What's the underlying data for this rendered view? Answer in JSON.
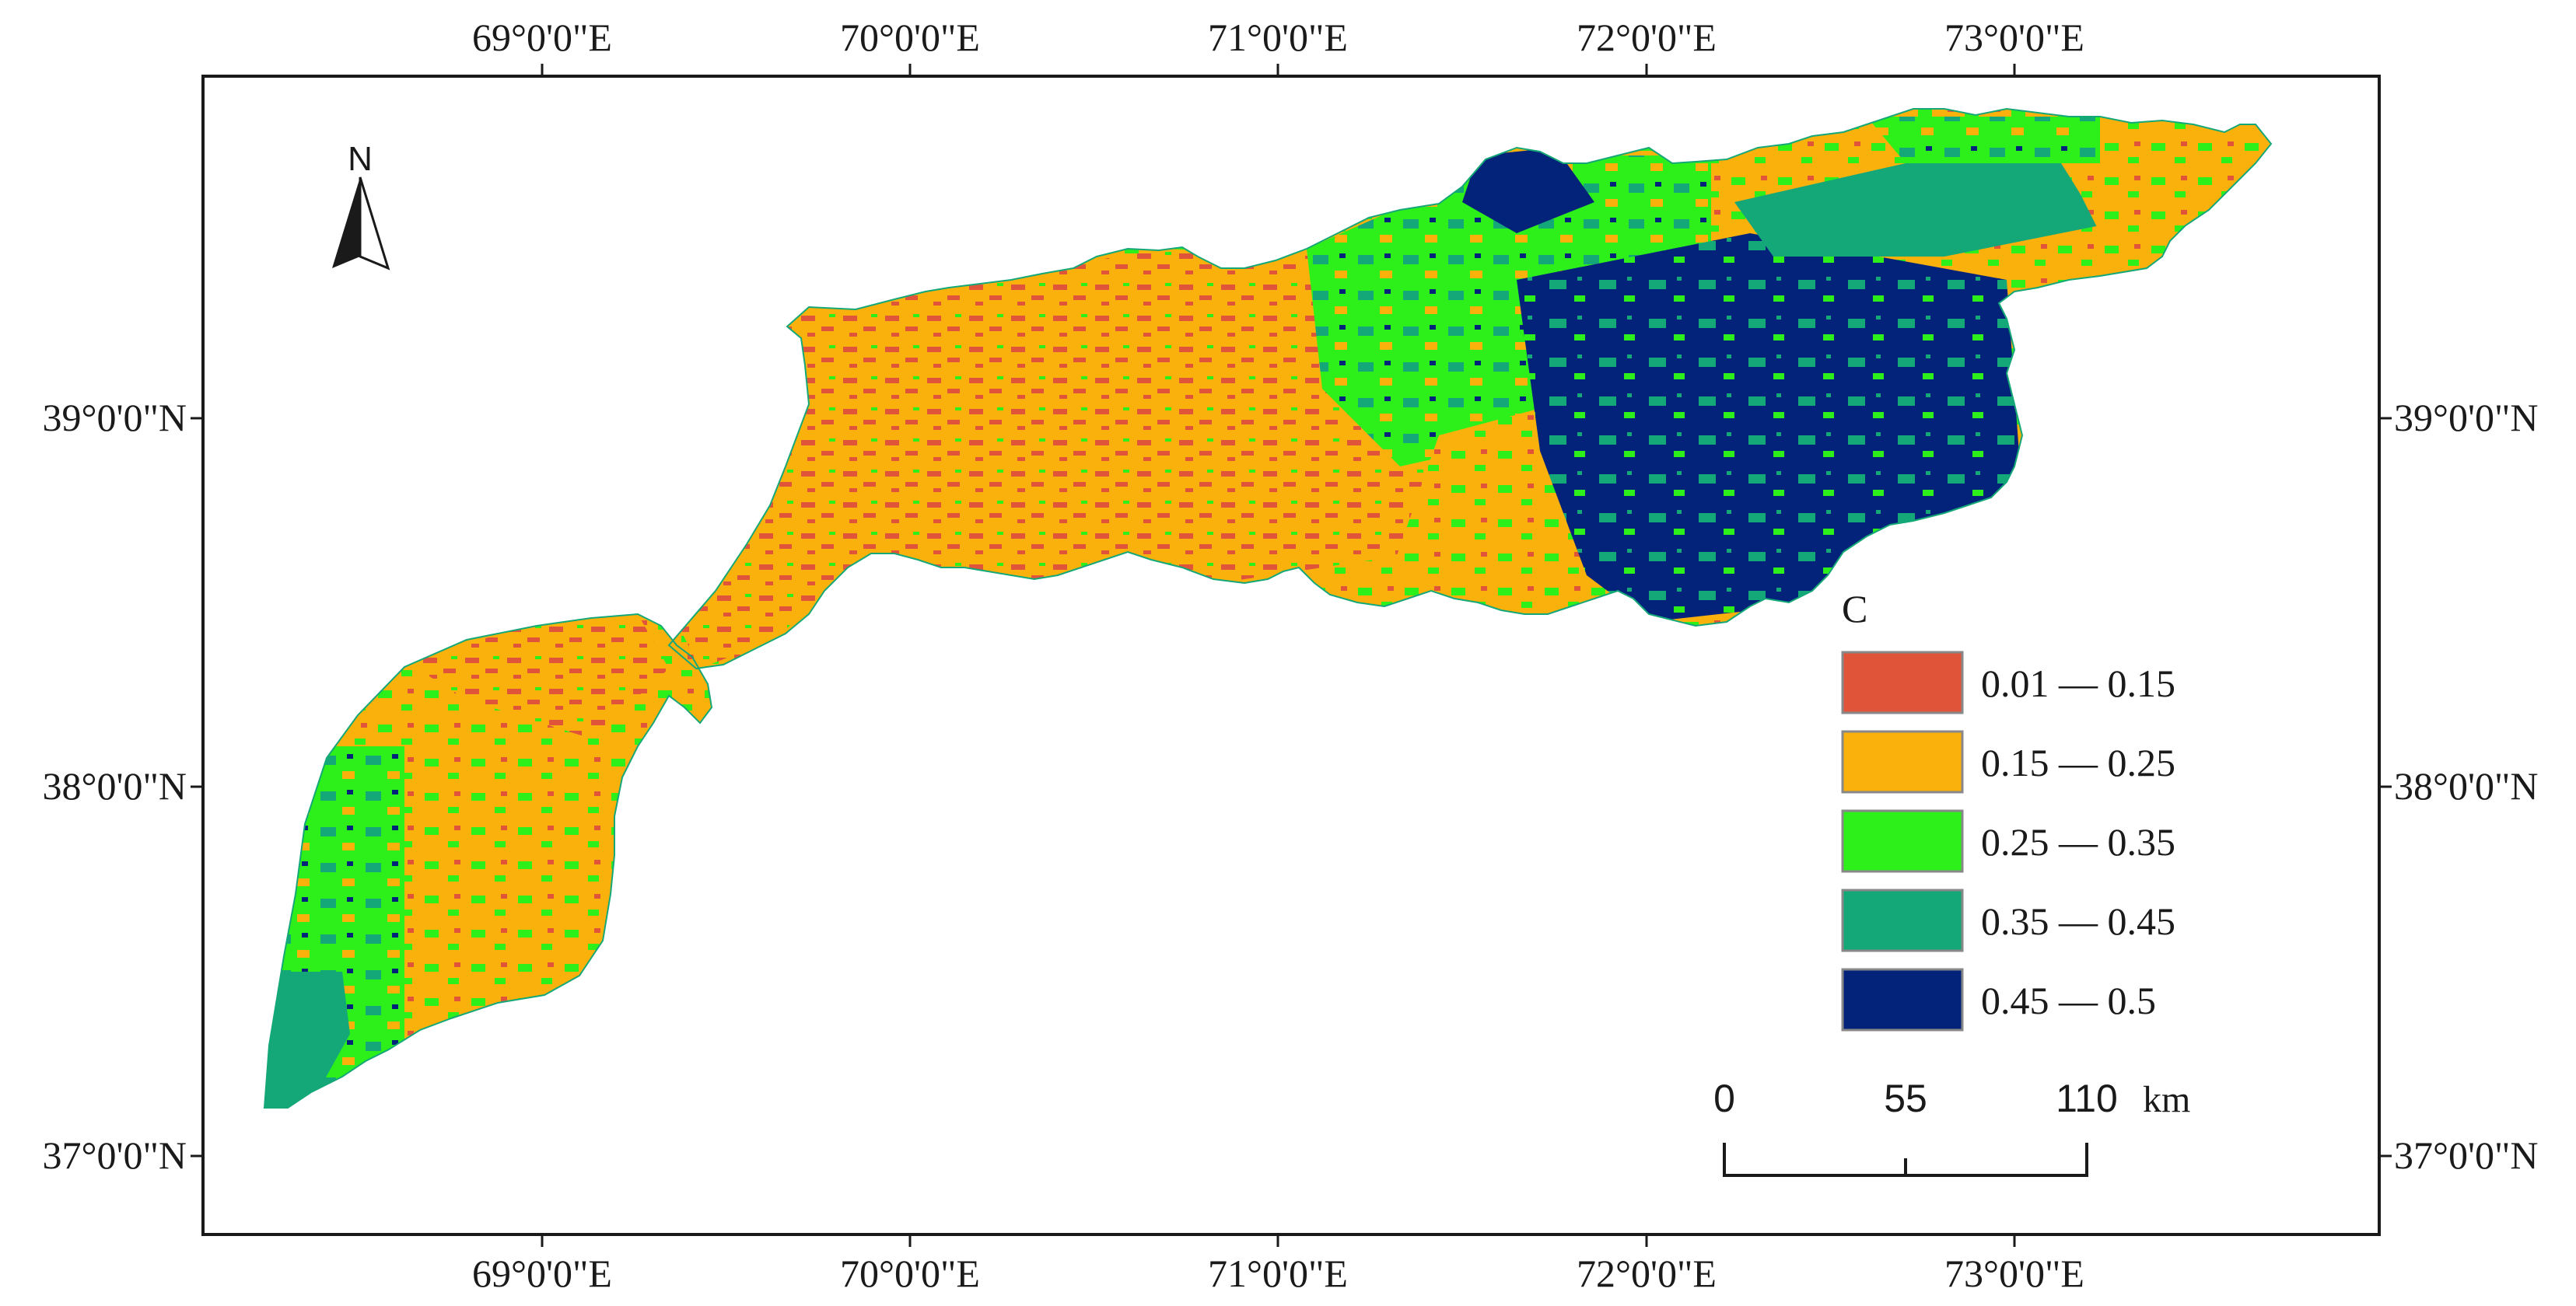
{
  "map": {
    "top_ticks": [
      "69°0'0\"E",
      "70°0'0\"E",
      "71°0'0\"E",
      "72°0'0\"E",
      "73°0'0\"E"
    ],
    "bottom_ticks": [
      "69°0'0\"E",
      "70°0'0\"E",
      "71°0'0\"E",
      "72°0'0\"E",
      "73°0'0\"E"
    ],
    "left_ticks": [
      "39°0'0\"N",
      "38°0'0\"N",
      "37°0'0\"N"
    ],
    "right_ticks": [
      "39°0'0\"N",
      "38°0'0\"N",
      "37°0'0\"N"
    ],
    "north_arrow": {
      "label": "N",
      "icon": "north-arrow-icon"
    },
    "legend": {
      "title": "C",
      "items": [
        {
          "label": "0.01 — 0.15",
          "color": "#e0543a"
        },
        {
          "label": "0.15 — 0.25",
          "color": "#fbb10b"
        },
        {
          "label": "0.25 — 0.35",
          "color": "#2df01b"
        },
        {
          "label": "0.35 — 0.45",
          "color": "#14a878"
        },
        {
          "label": "0.45 — 0.5",
          "color": "#03237a"
        }
      ]
    },
    "scale_bar": {
      "labels": [
        "0",
        "55",
        "110"
      ],
      "unit": "km"
    }
  }
}
